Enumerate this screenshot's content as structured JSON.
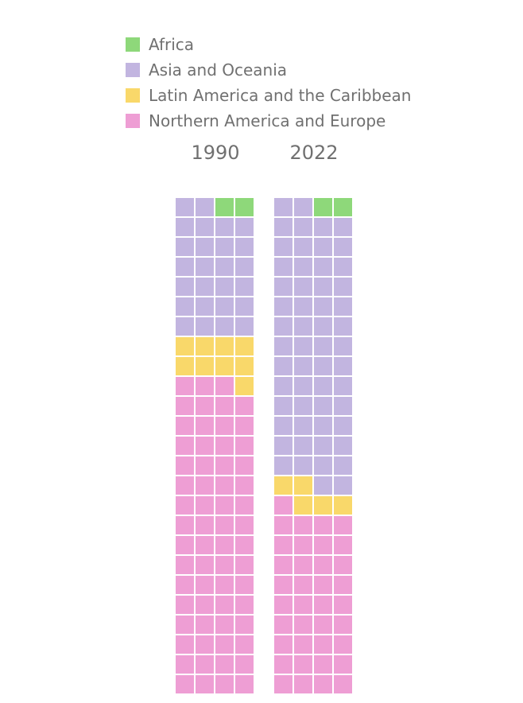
{
  "chart_data": {
    "type": "waffle",
    "columns": [
      {
        "label": "1990",
        "counts": {
          "Africa": 2,
          "Asia and Oceania": 26,
          "Latin America and the Caribbean": 9,
          "Northern America and Europe": 63
        }
      },
      {
        "label": "2022",
        "counts": {
          "Africa": 2,
          "Asia and Oceania": 56,
          "Latin America and the Caribbean": 5,
          "Northern America and Europe": 37
        }
      }
    ],
    "grid": {
      "rows": 25,
      "cols": 4
    },
    "series": [
      {
        "name": "Africa",
        "color": "#8ed87a"
      },
      {
        "name": "Asia and Oceania",
        "color": "#c2b5e0"
      },
      {
        "name": "Latin America and the Caribbean",
        "color": "#f9d86a"
      },
      {
        "name": "Northern America and Europe",
        "color": "#ee9ed4"
      }
    ]
  }
}
